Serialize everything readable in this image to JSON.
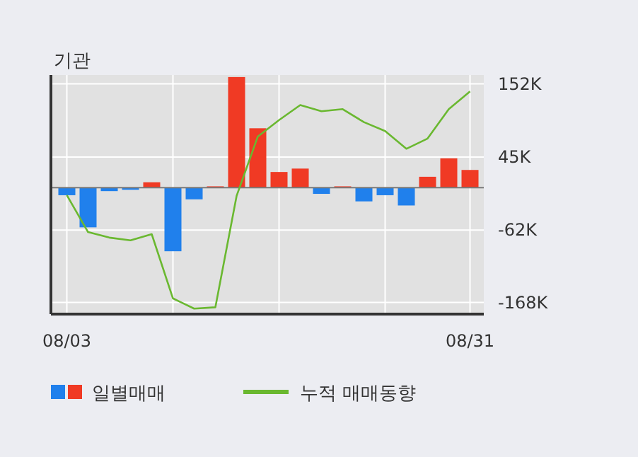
{
  "chart_data": {
    "type": "bar",
    "title": "기관",
    "categories": [
      "08/03",
      null,
      null,
      null,
      null,
      null,
      null,
      null,
      null,
      null,
      null,
      null,
      null,
      null,
      null,
      null,
      null,
      null,
      null,
      "08/31"
    ],
    "series": [
      {
        "name": "일별매매",
        "colors": [
          "#2080ec",
          "#2080ec",
          "#2080ec",
          "#2080ec",
          "#f03a24",
          "#2080ec",
          "#2080ec",
          "#f03a24",
          "#f03a24",
          "#f03a24",
          "#f03a24",
          "#f03a24",
          "#2080ec",
          "#f03a24",
          "#2080ec",
          "#2080ec",
          "#2080ec",
          "#f03a24",
          "#f03a24",
          "#f03a24"
        ],
        "values": [
          -11,
          -58,
          -5,
          -3,
          8,
          -93,
          -17,
          2,
          162,
          87,
          23,
          28,
          -9,
          2,
          -20,
          -11,
          -26,
          16,
          43,
          26
        ]
      },
      {
        "name": "누적 매매동향",
        "type": "line",
        "color": "#6ab830",
        "values": [
          -11,
          -65,
          -73,
          -77,
          -68,
          -162,
          -177,
          -175,
          -12,
          75,
          99,
          121,
          112,
          115,
          96,
          83,
          57,
          72,
          115,
          141
        ]
      }
    ],
    "ylim": [
      -185,
      165
    ],
    "yticks": [
      {
        "value": 152,
        "label": "152K"
      },
      {
        "value": 45,
        "label": "45K"
      },
      {
        "value": -62,
        "label": "-62K"
      },
      {
        "value": -168,
        "label": "-168K"
      }
    ],
    "grid": true,
    "legend": "bottom",
    "marker": "none"
  }
}
